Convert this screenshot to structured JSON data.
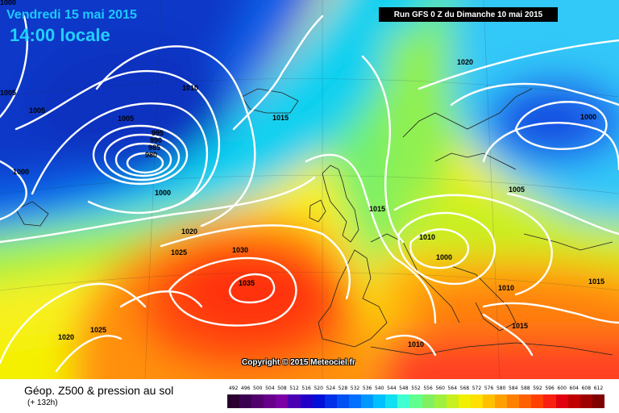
{
  "header": {
    "date": "Vendredi 15 mai 2015",
    "time": "14:00 locale",
    "run": "Run GFS 0 Z du Dimanche 10 mai 2015"
  },
  "copyright": "Copyright © 2015 Meteociel.fr",
  "footer": {
    "title": "Géop. Z500 & pression au sol",
    "subtitle": "(+ 132h)"
  },
  "legend": {
    "labels": [
      "492",
      "496",
      "500",
      "504",
      "508",
      "512",
      "516",
      "520",
      "524",
      "528",
      "532",
      "536",
      "540",
      "544",
      "548",
      "552",
      "556",
      "560",
      "564",
      "568",
      "572",
      "576",
      "580",
      "584",
      "588",
      "592",
      "596",
      "600",
      "604",
      "608",
      "612"
    ],
    "colors": [
      "#2a0030",
      "#3c0050",
      "#52006e",
      "#66008a",
      "#7a00a6",
      "#4b00b4",
      "#2000c8",
      "#0010d8",
      "#0030e8",
      "#0050f4",
      "#0070ff",
      "#0098ff",
      "#00c0ff",
      "#10e0f0",
      "#40ffd0",
      "#60ff90",
      "#80f060",
      "#a0f040",
      "#c8f020",
      "#f0f000",
      "#ffe000",
      "#ffc000",
      "#ffa000",
      "#ff8000",
      "#ff6000",
      "#ff4000",
      "#f82010",
      "#e00010",
      "#c00000",
      "#a00000",
      "#800000"
    ]
  },
  "isobar_labels": [
    "1005",
    "1005",
    "1005",
    "1010",
    "1015",
    "1020",
    "1000",
    "1000",
    "995",
    "990",
    "985",
    "980",
    "1000",
    "1020",
    "1025",
    "1030",
    "1035",
    "1020",
    "1025",
    "1015",
    "1010",
    "1000",
    "1005",
    "1010",
    "1015",
    "1015",
    "1010",
    "1000"
  ]
}
